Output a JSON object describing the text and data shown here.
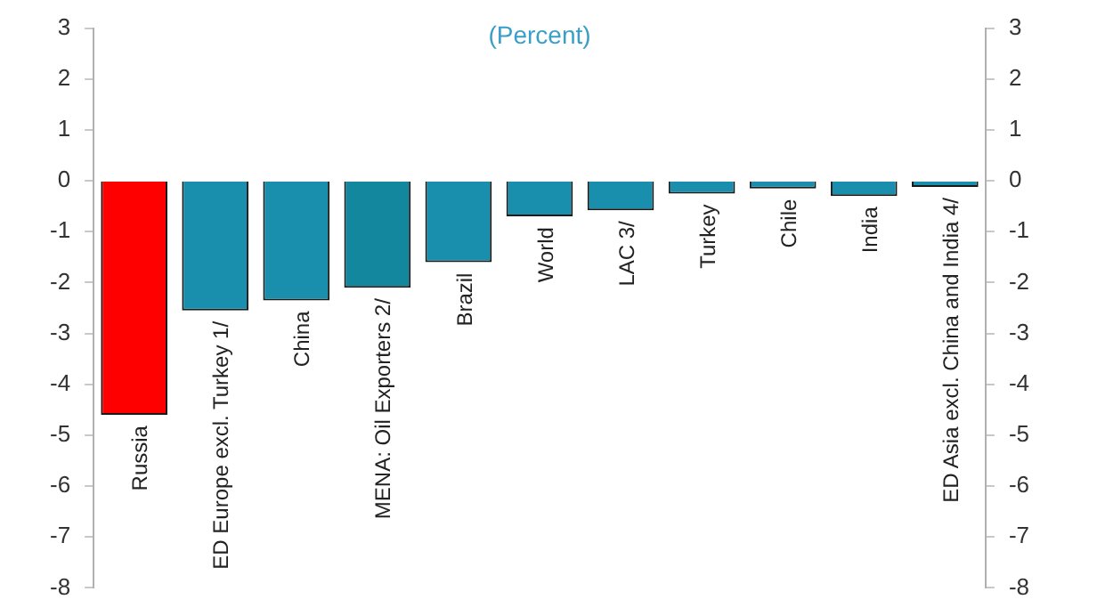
{
  "chart_data": {
    "type": "bar",
    "title": "(Percent)",
    "categories": [
      "Russia",
      "ED Europe excl. Turkey 1/",
      "China",
      "MENA: Oil Exporters 2/",
      "Brazil",
      "World",
      "LAC 3/",
      "Turkey",
      "Chile",
      "India",
      "ED Asia excl. China and India 4/"
    ],
    "values": [
      -4.6,
      -2.55,
      -2.35,
      -2.1,
      -1.6,
      -0.7,
      -0.58,
      -0.25,
      -0.15,
      -0.3,
      -0.12
    ],
    "colors": [
      "#ff0000",
      "#1a8fad",
      "#1a8fad",
      "#13879e",
      "#1a8fad",
      "#1a8fad",
      "#1a8fad",
      "#1a8fad",
      "#1a8fad",
      "#1a8fad",
      "#1a8fad"
    ],
    "ylim": [
      -8,
      3
    ],
    "yticks": [
      -8,
      -7,
      -6,
      -5,
      -4,
      -3,
      -2,
      -1,
      0,
      1,
      2,
      3
    ],
    "y2lim": [
      -8,
      3
    ],
    "y2ticks": [
      -8,
      -7,
      -6,
      -5,
      -4,
      -3,
      -2,
      -1,
      0,
      1,
      2,
      3
    ],
    "grid": false,
    "legend": false
  }
}
